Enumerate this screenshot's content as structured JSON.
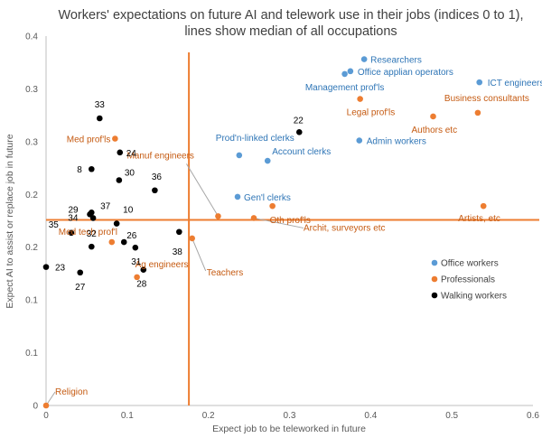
{
  "chart_data": {
    "type": "scatter",
    "title": "Workers' expectations on future AI and telework use in their jobs (indices 0 to 1),",
    "subtitle": "lines show median of all occupations",
    "xlabel": "Expect job to be teleworked in future",
    "ylabel": "Expect AI to assist or replace job in future",
    "xlim": [
      0,
      0.6
    ],
    "ylim": [
      0,
      0.4
    ],
    "x_ticks": [
      "0",
      "0.1",
      "0.2",
      "0.3",
      "0.4",
      "0.5",
      "0.6"
    ],
    "y_ticks": [
      "0",
      "0.1",
      "0.1",
      "0.2",
      "0.2",
      "0.3",
      "0.3",
      "0.4"
    ],
    "grid": false,
    "legend_position": "right",
    "median_x": 0.176,
    "median_y": 0.201,
    "median_color": "#ed7d31",
    "series": [
      {
        "name": "Office workers",
        "color": "#5b9bd5",
        "label_color": "#2e75b6",
        "points": [
          {
            "label": "Researchers",
            "x": 0.392,
            "y": 0.375
          },
          {
            "label": "Office applian operators",
            "x": 0.375,
            "y": 0.362
          },
          {
            "label": "Management prof'ls",
            "x": 0.368,
            "y": 0.359
          },
          {
            "label": "ICT engineers",
            "x": 0.534,
            "y": 0.35
          },
          {
            "label": "Prod'n-linked clerks",
            "x": 0.238,
            "y": 0.271
          },
          {
            "label": "Admin workers",
            "x": 0.386,
            "y": 0.287
          },
          {
            "label": "Account clerks",
            "x": 0.273,
            "y": 0.265
          },
          {
            "label": "Gen'l clerks",
            "x": 0.236,
            "y": 0.226
          }
        ]
      },
      {
        "name": "Professionals",
        "color": "#ed7d31",
        "label_color": "#c55a11",
        "points": [
          {
            "label": "Legal prof'ls",
            "x": 0.387,
            "y": 0.332
          },
          {
            "label": "Business consultants",
            "x": 0.532,
            "y": 0.317
          },
          {
            "label": "Authors etc",
            "x": 0.477,
            "y": 0.313
          },
          {
            "label": "Artists, etc",
            "x": 0.539,
            "y": 0.216
          },
          {
            "label": "Manuf engineers",
            "x": 0.212,
            "y": 0.205
          },
          {
            "label": "Oth prof'ls",
            "x": 0.279,
            "y": 0.216
          },
          {
            "label": "Archit, surveyors etc",
            "x": 0.256,
            "y": 0.203
          },
          {
            "label": "Med prof'ls",
            "x": 0.085,
            "y": 0.289
          },
          {
            "label": "Med tech prof'l",
            "x": 0.081,
            "y": 0.177
          },
          {
            "label": "Teachers",
            "x": 0.18,
            "y": 0.181
          },
          {
            "label": "Ag engineers",
            "x": 0.112,
            "y": 0.139
          },
          {
            "label": "Religion",
            "x": 0.0,
            "y": 0.0
          }
        ]
      },
      {
        "name": "Walking workers",
        "color": "#000000",
        "label_color": "#000000",
        "points": [
          {
            "label": "33",
            "x": 0.066,
            "y": 0.311
          },
          {
            "label": "22",
            "x": 0.312,
            "y": 0.296
          },
          {
            "label": "24",
            "x": 0.091,
            "y": 0.274
          },
          {
            "label": "8",
            "x": 0.056,
            "y": 0.256
          },
          {
            "label": "30",
            "x": 0.09,
            "y": 0.244
          },
          {
            "label": "36",
            "x": 0.134,
            "y": 0.233
          },
          {
            "label": "29",
            "x": 0.054,
            "y": 0.207
          },
          {
            "label": "37",
            "x": 0.058,
            "y": 0.203
          },
          {
            "label": "34",
            "x": 0.056,
            "y": 0.209
          },
          {
            "label": "10",
            "x": 0.087,
            "y": 0.197
          },
          {
            "label": "35",
            "x": 0.031,
            "y": 0.187
          },
          {
            "label": "32",
            "x": 0.056,
            "y": 0.172
          },
          {
            "label": "26",
            "x": 0.096,
            "y": 0.177
          },
          {
            "label": "31",
            "x": 0.11,
            "y": 0.171
          },
          {
            "label": "38",
            "x": 0.164,
            "y": 0.188
          },
          {
            "label": "23",
            "x": 0.0,
            "y": 0.15
          },
          {
            "label": "27",
            "x": 0.042,
            "y": 0.144
          },
          {
            "label": "28",
            "x": 0.12,
            "y": 0.147
          }
        ]
      }
    ]
  }
}
